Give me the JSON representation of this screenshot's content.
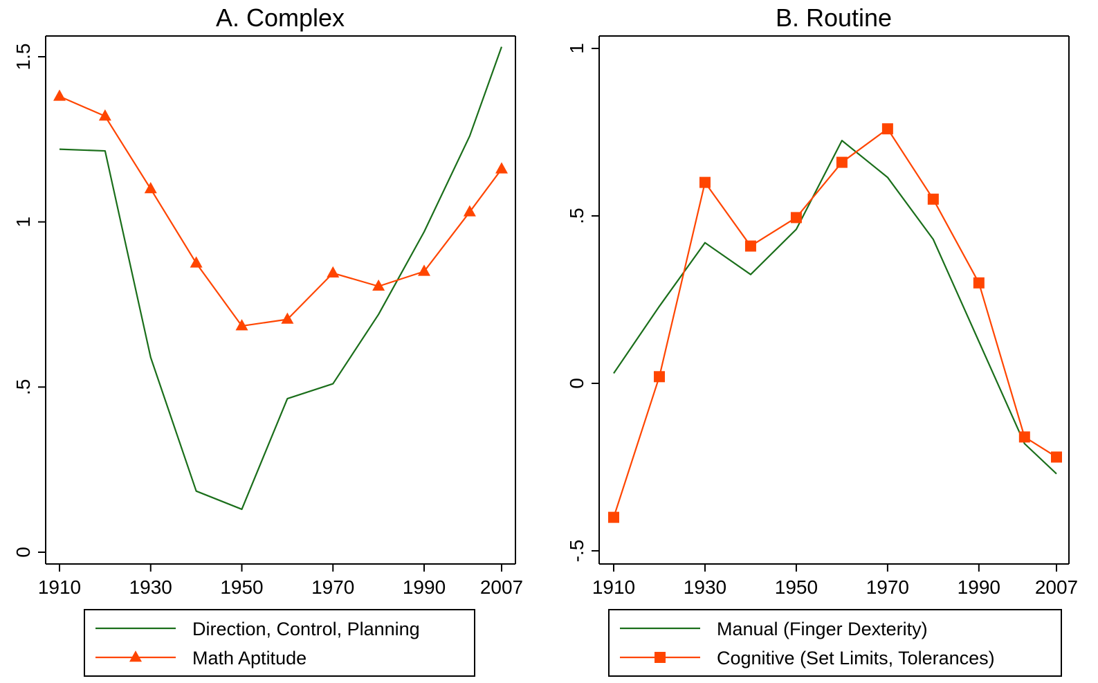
{
  "chart_data": [
    {
      "type": "line",
      "title": "A. Complex",
      "xlabel": "",
      "ylabel": "",
      "xlim": [
        1910,
        2007
      ],
      "ylim": [
        0,
        1.5
      ],
      "x_ticks": [
        1910,
        1930,
        1950,
        1970,
        1990,
        2007
      ],
      "x_tick_labels": [
        "1910",
        "1930",
        "1950",
        "1970",
        "1990",
        "2007"
      ],
      "y_ticks": [
        0,
        0.5,
        1,
        1.5
      ],
      "y_tick_labels": [
        "0",
        ".5",
        "1",
        "1.5"
      ],
      "grid": false,
      "legend_position": "bottom",
      "series": [
        {
          "name": "Direction, Control, Planning",
          "color": "#1a6e1a",
          "marker": "none",
          "x": [
            1910,
            1920,
            1930,
            1940,
            1950,
            1960,
            1970,
            1980,
            1990,
            2000,
            2007
          ],
          "y": [
            1.22,
            1.215,
            0.59,
            0.185,
            0.13,
            0.465,
            0.51,
            0.72,
            0.97,
            1.26,
            1.53
          ]
        },
        {
          "name": "Math Aptitude",
          "color": "#ff4500",
          "marker": "triangle",
          "x": [
            1910,
            1920,
            1930,
            1940,
            1950,
            1960,
            1970,
            1980,
            1990,
            2000,
            2007
          ],
          "y": [
            1.38,
            1.32,
            1.1,
            0.875,
            0.685,
            0.705,
            0.845,
            0.805,
            0.85,
            1.03,
            1.16
          ]
        }
      ]
    },
    {
      "type": "line",
      "title": "B. Routine",
      "xlabel": "",
      "ylabel": "",
      "xlim": [
        1910,
        2007
      ],
      "ylim": [
        -0.5,
        1
      ],
      "x_ticks": [
        1910,
        1930,
        1950,
        1970,
        1990,
        2007
      ],
      "x_tick_labels": [
        "1910",
        "1930",
        "1950",
        "1970",
        "1990",
        "2007"
      ],
      "y_ticks": [
        -0.5,
        0,
        0.5,
        1
      ],
      "y_tick_labels": [
        "-.5",
        "0",
        ".5",
        "1"
      ],
      "grid": false,
      "legend_position": "bottom",
      "series": [
        {
          "name": "Manual (Finger Dexterity)",
          "color": "#1a6e1a",
          "marker": "none",
          "x": [
            1910,
            1920,
            1930,
            1940,
            1950,
            1960,
            1970,
            1980,
            1990,
            2000,
            2007
          ],
          "y": [
            0.03,
            0.23,
            0.42,
            0.325,
            0.46,
            0.725,
            0.615,
            0.43,
            0.125,
            -0.18,
            -0.27
          ]
        },
        {
          "name": "Cognitive (Set Limits, Tolerances)",
          "color": "#ff4500",
          "marker": "square",
          "x": [
            1910,
            1920,
            1930,
            1940,
            1950,
            1960,
            1970,
            1980,
            1990,
            2000,
            2007
          ],
          "y": [
            -0.4,
            0.02,
            0.6,
            0.41,
            0.495,
            0.66,
            0.76,
            0.55,
            0.3,
            -0.16,
            -0.22
          ]
        }
      ]
    }
  ]
}
